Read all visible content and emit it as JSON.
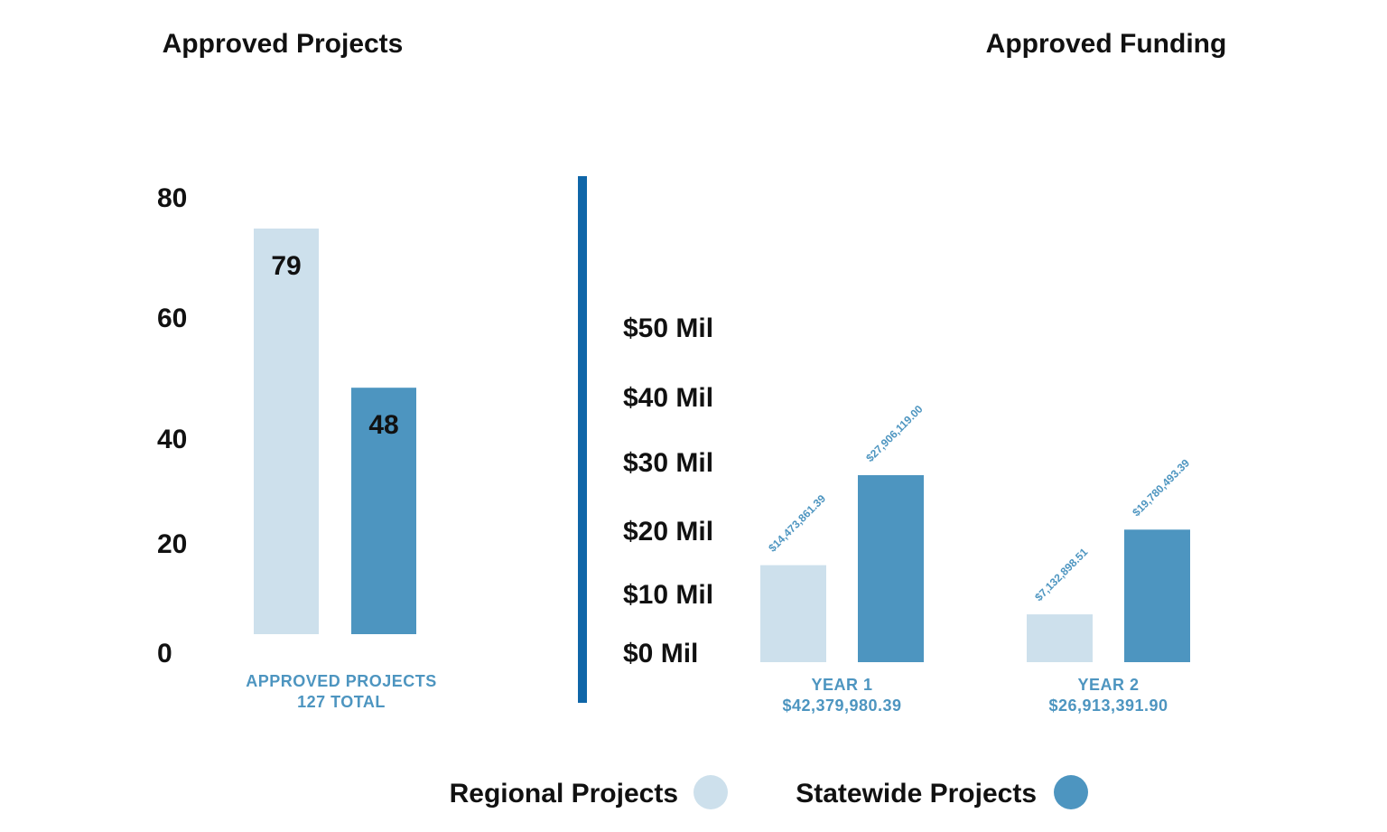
{
  "colors": {
    "regional": "#cde0ec",
    "statewide": "#4d95c0",
    "divider": "#0f66a8",
    "category_text": "#4d95c0",
    "text": "#111111"
  },
  "chart_data": [
    {
      "type": "bar",
      "title": "Approved Projects",
      "categories": [
        "APPROVED PROJECTS"
      ],
      "category_sublabels": [
        "127 TOTAL"
      ],
      "series": [
        {
          "name": "Regional Projects",
          "values": [
            79
          ]
        },
        {
          "name": "Statewide Projects",
          "values": [
            48
          ]
        }
      ],
      "data_labels": [
        [
          "79"
        ],
        [
          "48"
        ]
      ],
      "yticks": [
        0,
        20,
        40,
        60,
        80
      ],
      "ytick_labels": [
        "0",
        "20",
        "40",
        "60",
        "80"
      ],
      "ylim": [
        0,
        80
      ],
      "xlabel": "",
      "ylabel": "",
      "grid": false
    },
    {
      "type": "bar",
      "title": "Approved Funding",
      "categories": [
        "YEAR 1",
        "YEAR 2"
      ],
      "category_sublabels": [
        "$42,379,980.39",
        "$26,913,391.90"
      ],
      "series": [
        {
          "name": "Regional Projects",
          "values": [
            14473861.39,
            7132898.51
          ]
        },
        {
          "name": "Statewide Projects",
          "values": [
            27906119.0,
            19780493.39
          ]
        }
      ],
      "data_labels": [
        [
          "$14,473,861.39",
          "$7,132,898.51"
        ],
        [
          "$27,906,119.00",
          "$19,780,493.39"
        ]
      ],
      "yticks": [
        0,
        10000000,
        20000000,
        30000000,
        40000000,
        50000000
      ],
      "ytick_labels": [
        "$0 Mil",
        "$10 Mil",
        "$20 Mil",
        "$30 Mil",
        "$40 Mil",
        "$50 Mil"
      ],
      "ylim": [
        0,
        50000000
      ],
      "xlabel": "",
      "ylabel": "",
      "grid": false
    }
  ],
  "legend": {
    "position": "bottom-center",
    "items": [
      {
        "label": "Regional Projects",
        "color": "#cde0ec"
      },
      {
        "label": "Statewide Projects",
        "color": "#4d95c0"
      }
    ]
  }
}
